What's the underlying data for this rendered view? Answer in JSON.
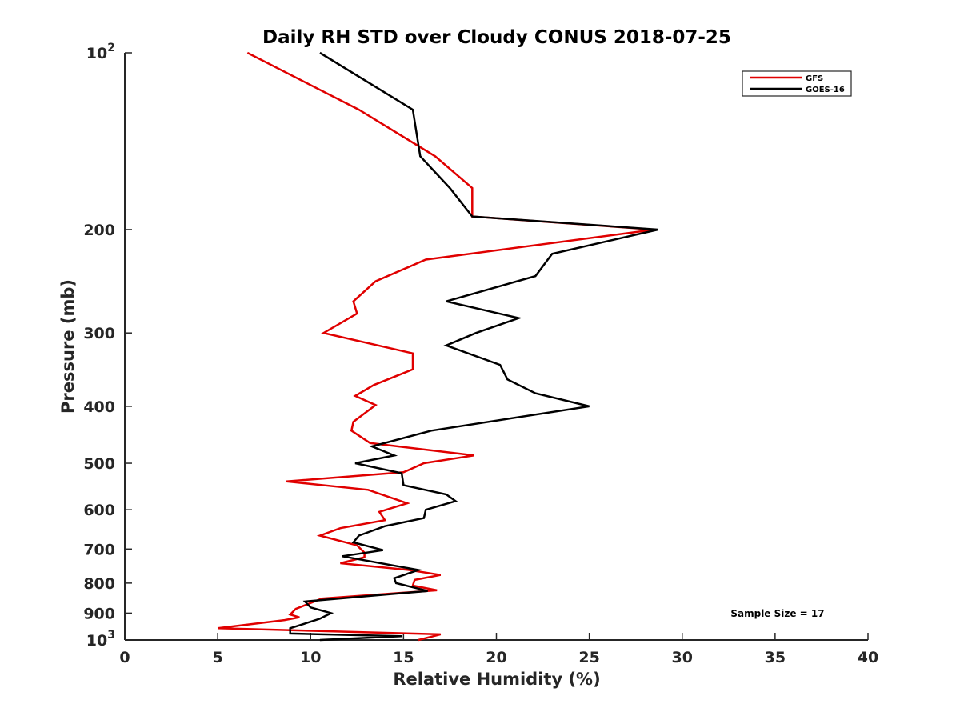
{
  "chart_data": {
    "type": "line",
    "title": "Daily RH STD over Cloudy CONUS 2018-07-25",
    "xlabel": "Relative Humidity (%)",
    "ylabel": "Pressure (mb)",
    "xlim": [
      0,
      40
    ],
    "ylim": [
      100,
      1000
    ],
    "y_scale": "log",
    "y_reversed": true,
    "x_ticks": [
      0,
      5,
      10,
      15,
      20,
      25,
      30,
      35,
      40
    ],
    "y_ticks": [
      {
        "value": 100,
        "base": "10",
        "exp": "2"
      },
      {
        "value": 200,
        "label": "200"
      },
      {
        "value": 300,
        "label": "300"
      },
      {
        "value": 400,
        "label": "400"
      },
      {
        "value": 500,
        "label": "500"
      },
      {
        "value": 600,
        "label": "600"
      },
      {
        "value": 700,
        "label": "700"
      },
      {
        "value": 800,
        "label": "800"
      },
      {
        "value": 900,
        "label": "900"
      },
      {
        "value": 1000,
        "base": "10",
        "exp": "3"
      }
    ],
    "grid": false,
    "legend_position": "top-right",
    "annotation": "Sample Size = 17",
    "series": [
      {
        "name": "GFS",
        "color": "#e00000",
        "points": [
          [
            6.6,
            100
          ],
          [
            12.6,
            125
          ],
          [
            16.7,
            150
          ],
          [
            18.7,
            170
          ],
          [
            18.7,
            190
          ],
          [
            28.5,
            200
          ],
          [
            16.2,
            225
          ],
          [
            13.5,
            245
          ],
          [
            12.3,
            265
          ],
          [
            12.5,
            278
          ],
          [
            10.7,
            300
          ],
          [
            15.5,
            325
          ],
          [
            15.5,
            346
          ],
          [
            13.4,
            368
          ],
          [
            12.4,
            384
          ],
          [
            13.5,
            398
          ],
          [
            12.3,
            425
          ],
          [
            12.2,
            440
          ],
          [
            13.2,
            462
          ],
          [
            18.8,
            485
          ],
          [
            16.1,
            500
          ],
          [
            15.0,
            518
          ],
          [
            8.7,
            537
          ],
          [
            13.1,
            555
          ],
          [
            15.2,
            585
          ],
          [
            13.7,
            605
          ],
          [
            14.0,
            625
          ],
          [
            11.6,
            645
          ],
          [
            10.5,
            664
          ],
          [
            12.5,
            690
          ],
          [
            12.9,
            710
          ],
          [
            12.9,
            723
          ],
          [
            11.6,
            740
          ],
          [
            15.3,
            760
          ],
          [
            17.0,
            775
          ],
          [
            15.6,
            790
          ],
          [
            15.5,
            808
          ],
          [
            16.8,
            823
          ],
          [
            10.6,
            850
          ],
          [
            9.2,
            885
          ],
          [
            8.9,
            905
          ],
          [
            9.4,
            915
          ],
          [
            8.6,
            925
          ],
          [
            5.0,
            955
          ],
          [
            17.0,
            978
          ],
          [
            15.8,
            1000
          ]
        ]
      },
      {
        "name": "GOES-16",
        "color": "#000000",
        "points": [
          [
            10.5,
            100
          ],
          [
            15.5,
            125
          ],
          [
            15.9,
            150
          ],
          [
            17.5,
            170
          ],
          [
            18.7,
            190
          ],
          [
            28.7,
            200
          ],
          [
            23.0,
            220
          ],
          [
            22.1,
            240
          ],
          [
            17.3,
            265
          ],
          [
            21.2,
            283
          ],
          [
            18.9,
            300
          ],
          [
            17.3,
            315
          ],
          [
            20.2,
            340
          ],
          [
            20.6,
            360
          ],
          [
            22.1,
            380
          ],
          [
            25.0,
            400
          ],
          [
            16.5,
            440
          ],
          [
            13.3,
            468
          ],
          [
            14.5,
            485
          ],
          [
            12.4,
            500
          ],
          [
            14.9,
            520
          ],
          [
            15.0,
            545
          ],
          [
            17.3,
            565
          ],
          [
            17.8,
            580
          ],
          [
            16.2,
            600
          ],
          [
            16.1,
            620
          ],
          [
            14.0,
            640
          ],
          [
            12.6,
            664
          ],
          [
            12.3,
            682
          ],
          [
            13.9,
            703
          ],
          [
            11.7,
            720
          ],
          [
            15.8,
            760
          ],
          [
            14.5,
            785
          ],
          [
            14.6,
            800
          ],
          [
            16.3,
            825
          ],
          [
            9.7,
            860
          ],
          [
            10.0,
            880
          ],
          [
            11.1,
            900
          ],
          [
            10.5,
            920
          ],
          [
            8.9,
            955
          ],
          [
            8.9,
            975
          ],
          [
            14.9,
            985
          ],
          [
            10.5,
            1000
          ]
        ]
      }
    ]
  }
}
